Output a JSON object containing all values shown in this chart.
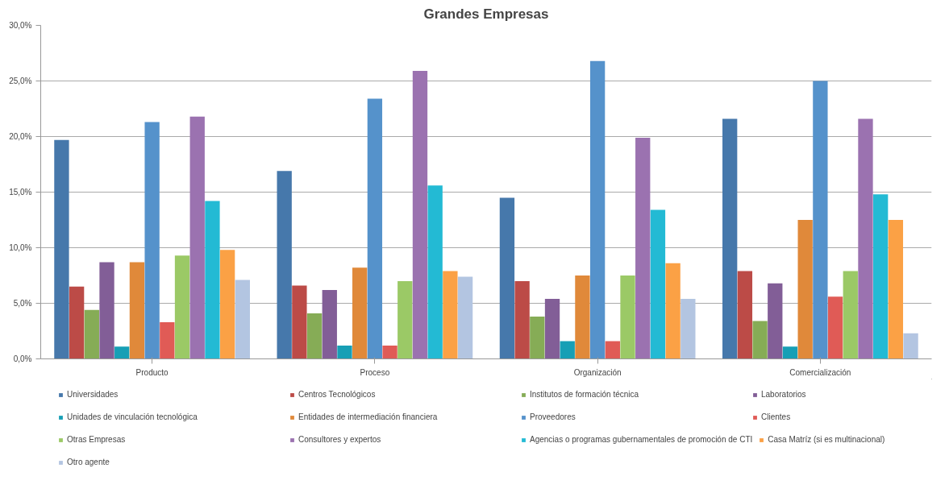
{
  "chart_data": {
    "type": "bar",
    "title": "Grandes Empresas",
    "categories": [
      "Producto",
      "Proceso",
      "Organización",
      "Comercialización"
    ],
    "series": [
      {
        "name": "Universidades",
        "color": "#4678ab",
        "values": [
          19.7,
          16.9,
          14.5,
          21.6
        ]
      },
      {
        "name": "Centros Tecnológicos",
        "color": "#bc4b47",
        "values": [
          6.5,
          6.6,
          7.0,
          7.9
        ]
      },
      {
        "name": "Institutos de formación técnica",
        "color": "#86ac56",
        "values": [
          4.4,
          4.1,
          3.8,
          3.4
        ]
      },
      {
        "name": "Laboratorios",
        "color": "#825e97",
        "values": [
          8.7,
          6.2,
          5.4,
          6.8
        ]
      },
      {
        "name": "Unidades de vinculación tecnológica",
        "color": "#179fb5",
        "values": [
          1.1,
          1.2,
          1.6,
          1.1
        ]
      },
      {
        "name": "Entidades de intermediación financiera",
        "color": "#e0893a",
        "values": [
          8.7,
          8.2,
          7.5,
          12.5
        ]
      },
      {
        "name": "Proveedores",
        "color": "#5592cb",
        "values": [
          21.3,
          23.4,
          26.8,
          25.0
        ]
      },
      {
        "name": "Clientes",
        "color": "#e05b56",
        "values": [
          3.3,
          1.2,
          1.6,
          5.6
        ]
      },
      {
        "name": "Otras Empresas",
        "color": "#9bc966",
        "values": [
          9.3,
          7.0,
          7.5,
          7.9
        ]
      },
      {
        "name": "Consultores y expertos",
        "color": "#9b72b0",
        "values": [
          21.8,
          25.9,
          19.9,
          21.6
        ]
      },
      {
        "name": "Agencias o programas gubernamentales de promoción de CTI",
        "color": "#23bad4",
        "values": [
          14.2,
          15.6,
          13.4,
          14.8
        ]
      },
      {
        "name": "Casa Matríz (si es multinacional)",
        "color": "#fba145",
        "values": [
          9.8,
          7.9,
          8.6,
          12.5
        ]
      },
      {
        "name": "Otro agente",
        "color": "#b3c5e1",
        "values": [
          7.1,
          7.4,
          5.4,
          2.3
        ]
      }
    ],
    "ylim": [
      0,
      30
    ],
    "yticks": [
      {
        "value": 0,
        "label": "0,0%"
      },
      {
        "value": 5,
        "label": "5,0%"
      },
      {
        "value": 10,
        "label": "10,0%"
      },
      {
        "value": 15,
        "label": "15,0%"
      },
      {
        "value": 20,
        "label": "20,0%"
      },
      {
        "value": 25,
        "label": "25,0%"
      },
      {
        "value": 30,
        "label": "30,0%"
      }
    ],
    "grid": "y",
    "legend": "bottom"
  }
}
